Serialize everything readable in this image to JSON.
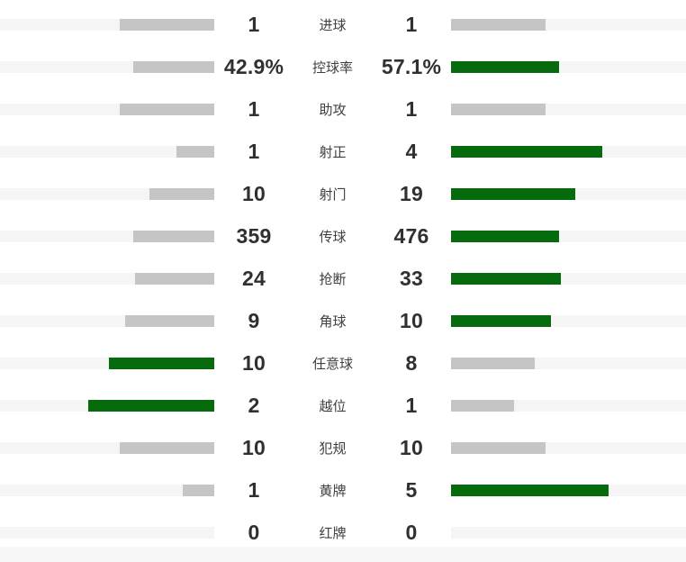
{
  "colors": {
    "bar_win_green": "#066B0D",
    "bar_gray": "#C5C5C5",
    "track": "#F5F5F5",
    "footer": "#F7F7F7",
    "value_text": "#303030",
    "label_text": "#3F3F3F"
  },
  "chart_data": {
    "type": "bar",
    "layout": "paired-horizontal-diverging",
    "title": "",
    "legend": "none",
    "bar_rule": "bar width proportional to value share of row total (combined ~210px); higher value is green, lower or tied value is gray; zero renders no bar",
    "categories": [
      "进球",
      "控球率",
      "助攻",
      "射正",
      "射门",
      "传球",
      "抢断",
      "角球",
      "任意球",
      "越位",
      "犯规",
      "黄牌",
      "红牌"
    ],
    "series": [
      {
        "name": "left-team",
        "side": "left",
        "values": [
          1,
          42.9,
          1,
          1,
          10,
          359,
          24,
          9,
          10,
          2,
          10,
          1,
          0
        ],
        "display": [
          "1",
          "42.9%",
          "1",
          "1",
          "10",
          "359",
          "24",
          "9",
          "10",
          "2",
          "10",
          "1",
          "0"
        ]
      },
      {
        "name": "right-team",
        "side": "right",
        "values": [
          1,
          57.1,
          1,
          4,
          19,
          476,
          33,
          10,
          8,
          1,
          10,
          5,
          0
        ],
        "display": [
          "1",
          "57.1%",
          "1",
          "4",
          "19",
          "476",
          "33",
          "10",
          "8",
          "1",
          "10",
          "5",
          "0"
        ]
      }
    ]
  }
}
